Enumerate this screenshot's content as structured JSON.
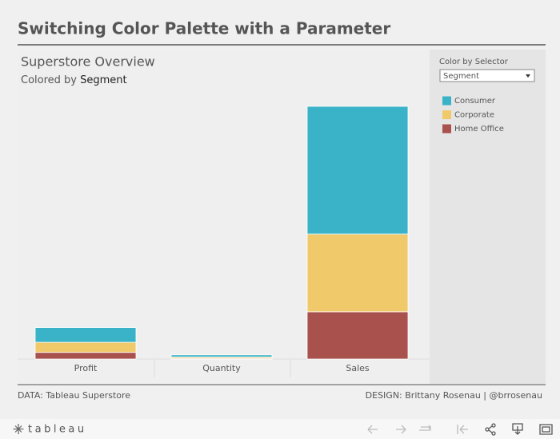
{
  "dashboard_title": "Switching Color Palette with a Parameter",
  "selector": {
    "label": "Color by Selector",
    "value": "Segment"
  },
  "footer": {
    "left": "DATA: Tableau Superstore",
    "right": "DESIGN: Brittany Rosenau | @brrosenau"
  },
  "toolbar": {
    "logo": "tableau"
  },
  "chart_data": {
    "type": "bar",
    "stacked": true,
    "title": "Superstore Overview",
    "subtitle": {
      "prefix": "Colored by",
      "field": "Segment"
    },
    "categories": [
      "Profit",
      "Quantity",
      "Sales"
    ],
    "series": [
      {
        "name": "Consumer",
        "color": "#3ab3c8",
        "values": [
          134119,
          19521,
          1161401
        ]
      },
      {
        "name": "Corporate",
        "color": "#f0c96a",
        "values": [
          91979,
          11608,
          706146
        ]
      },
      {
        "name": "Home Office",
        "color": "#a8514d",
        "values": [
          60299,
          6744,
          429653
        ]
      }
    ]
  }
}
